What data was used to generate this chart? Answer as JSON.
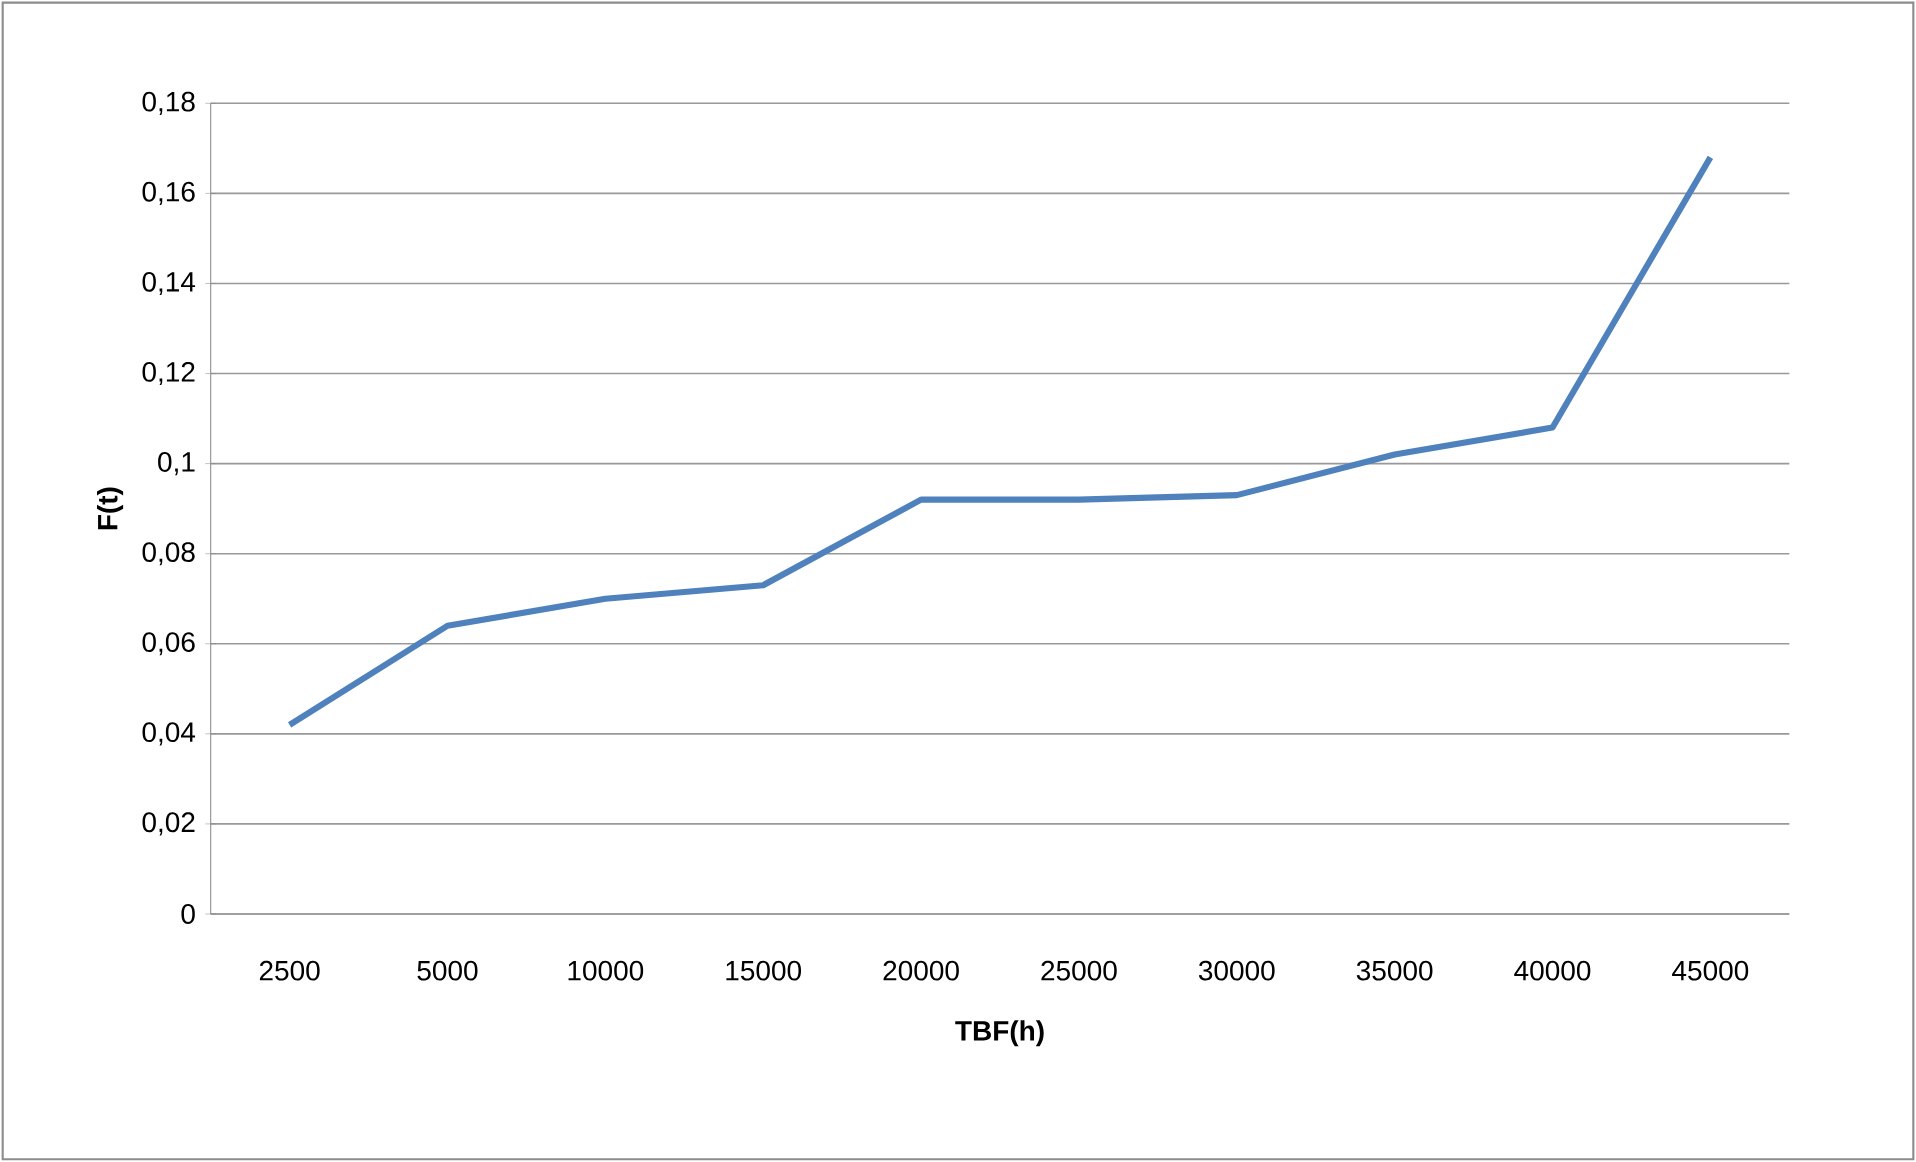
{
  "chart_data": {
    "type": "line",
    "xlabel": "TBF(h)",
    "ylabel": "F(t)",
    "categories": [
      "2500",
      "5000",
      "10000",
      "15000",
      "20000",
      "25000",
      "30000",
      "35000",
      "40000",
      "45000"
    ],
    "series": [
      {
        "color": "#4f81bd",
        "values": [
          0.042,
          0.064,
          0.07,
          0.073,
          0.092,
          0.092,
          0.093,
          0.102,
          0.108,
          0.168
        ]
      }
    ],
    "ylim": [
      0,
      0.18
    ],
    "yticks": [
      0,
      {
        "value": 0.02,
        "label": "0,02"
      },
      {
        "value": 0.04,
        "label": "0,04"
      },
      {
        "value": 0.06,
        "label": "0,06"
      },
      {
        "value": 0.08,
        "label": "0,08"
      },
      {
        "value": 0.1,
        "label": "0,1"
      },
      {
        "value": 0.12,
        "label": "0,12"
      },
      {
        "value": 0.14,
        "label": "0,14"
      },
      {
        "value": 0.16,
        "label": "0,16"
      },
      {
        "value": 0.18,
        "label": "0,18"
      }
    ],
    "grid": "y",
    "marker": "none",
    "line_style": "solid"
  }
}
